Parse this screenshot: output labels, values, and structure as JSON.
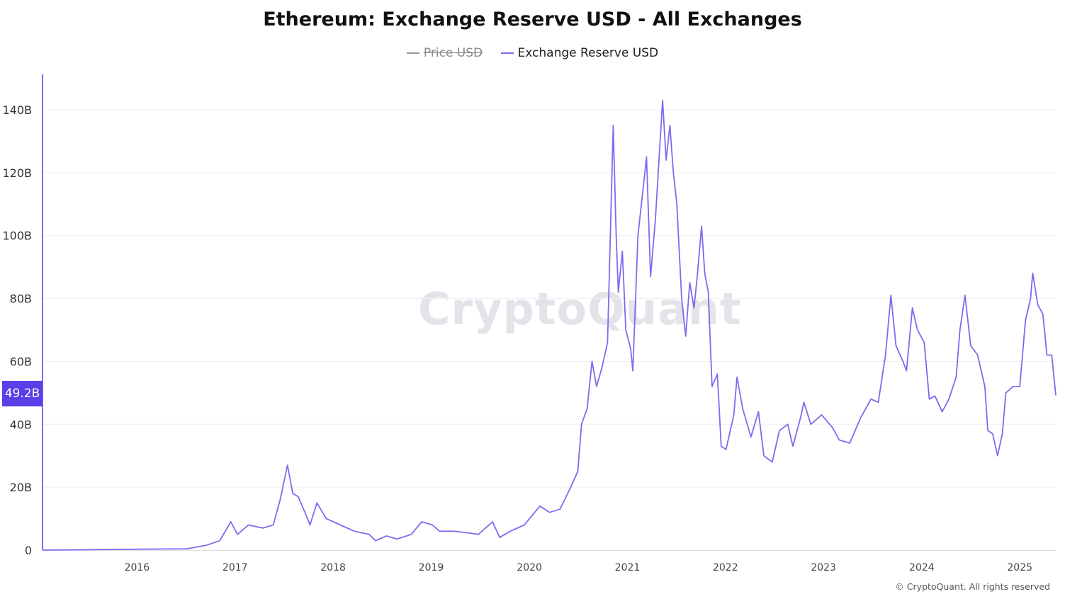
{
  "colors": {
    "series": "#7b6cf0",
    "price": "#999999",
    "badge": "#5b3ee8",
    "axis": "#7b6cf0",
    "grid": "#efefef"
  },
  "legend": [
    {
      "label": "Price USD",
      "enabled": false
    },
    {
      "label": "Exchange Reserve USD",
      "enabled": true
    }
  ],
  "watermark": "CryptoQuant",
  "footer": "© CryptoQuant. All rights reserved",
  "current_value_label": "49.2B",
  "chart_data": {
    "type": "line",
    "title": "Ethereum: Exchange Reserve USD - All Exchanges",
    "xlabel": "",
    "ylabel": "",
    "x_range": [
      "2015-07-15",
      "2025-11-12"
    ],
    "ylim": [
      0,
      151
    ],
    "y_unit": "B USD",
    "grid": true,
    "legend_position": "top-center",
    "x_ticks": [
      "2016",
      "2017",
      "2018",
      "2019",
      "2020",
      "2021",
      "2022",
      "2023",
      "2024",
      "2025"
    ],
    "y_ticks": [
      {
        "value": 0,
        "label": "0"
      },
      {
        "value": 20,
        "label": "20B"
      },
      {
        "value": 40,
        "label": "40B"
      },
      {
        "value": 60,
        "label": "60B"
      },
      {
        "value": 80,
        "label": "80B"
      },
      {
        "value": 100,
        "label": "100B"
      },
      {
        "value": 120,
        "label": "120B"
      },
      {
        "value": 140,
        "label": "140B"
      }
    ],
    "series": [
      {
        "name": "Exchange Reserve USD",
        "points": [
          [
            "2015-07-15",
            0
          ],
          [
            "2016-07-20",
            0.3
          ],
          [
            "2017-01-01",
            0.4
          ],
          [
            "2017-03-15",
            1.5
          ],
          [
            "2017-05-05",
            3
          ],
          [
            "2017-06-15",
            9
          ],
          [
            "2017-07-10",
            5
          ],
          [
            "2017-08-20",
            8
          ],
          [
            "2017-10-12",
            7
          ],
          [
            "2017-11-20",
            8
          ],
          [
            "2017-12-16",
            16
          ],
          [
            "2018-01-12",
            27
          ],
          [
            "2018-02-01",
            18
          ],
          [
            "2018-02-21",
            17
          ],
          [
            "2018-03-18",
            12
          ],
          [
            "2018-04-06",
            8
          ],
          [
            "2018-05-02",
            15
          ],
          [
            "2018-06-06",
            10
          ],
          [
            "2018-07-28",
            8
          ],
          [
            "2018-09-18",
            6
          ],
          [
            "2018-11-12",
            5
          ],
          [
            "2018-12-06",
            3
          ],
          [
            "2019-01-16",
            4.5
          ],
          [
            "2019-02-24",
            3.5
          ],
          [
            "2019-04-18",
            5
          ],
          [
            "2019-05-27",
            9
          ],
          [
            "2019-07-06",
            8
          ],
          [
            "2019-08-01",
            6
          ],
          [
            "2019-09-24",
            6
          ],
          [
            "2019-11-15",
            5.5
          ],
          [
            "2019-12-24",
            5
          ],
          [
            "2020-02-15",
            9
          ],
          [
            "2020-03-12",
            4
          ],
          [
            "2020-04-21",
            6
          ],
          [
            "2020-06-12",
            8
          ],
          [
            "2020-08-09",
            14
          ],
          [
            "2020-09-14",
            12
          ],
          [
            "2020-10-23",
            13
          ],
          [
            "2020-12-02",
            20
          ],
          [
            "2020-12-28",
            25
          ],
          [
            "2021-01-11",
            40
          ],
          [
            "2021-02-01",
            45
          ],
          [
            "2021-02-19",
            60
          ],
          [
            "2021-03-08",
            52
          ],
          [
            "2021-03-28",
            58
          ],
          [
            "2021-04-18",
            66
          ],
          [
            "2021-05-09",
            135
          ],
          [
            "2021-05-20",
            100
          ],
          [
            "2021-05-28",
            82
          ],
          [
            "2021-06-12",
            95
          ],
          [
            "2021-06-25",
            70
          ],
          [
            "2021-07-13",
            64
          ],
          [
            "2021-07-21",
            57
          ],
          [
            "2021-08-09",
            100
          ],
          [
            "2021-08-22",
            110
          ],
          [
            "2021-09-10",
            125
          ],
          [
            "2021-09-25",
            87
          ],
          [
            "2021-10-13",
            105
          ],
          [
            "2021-11-09",
            143
          ],
          [
            "2021-11-22",
            124
          ],
          [
            "2021-12-06",
            135
          ],
          [
            "2021-12-19",
            120
          ],
          [
            "2022-01-01",
            110
          ],
          [
            "2022-01-19",
            80
          ],
          [
            "2022-02-03",
            68
          ],
          [
            "2022-02-18",
            85
          ],
          [
            "2022-03-06",
            77
          ],
          [
            "2022-03-19",
            88
          ],
          [
            "2022-04-03",
            103
          ],
          [
            "2022-04-15",
            88
          ],
          [
            "2022-04-28",
            82
          ],
          [
            "2022-05-12",
            52
          ],
          [
            "2022-06-01",
            56
          ],
          [
            "2022-06-15",
            33
          ],
          [
            "2022-07-03",
            32
          ],
          [
            "2022-08-01",
            43
          ],
          [
            "2022-08-13",
            55
          ],
          [
            "2022-09-03",
            45
          ],
          [
            "2022-10-04",
            36
          ],
          [
            "2022-11-01",
            44
          ],
          [
            "2022-11-21",
            30
          ],
          [
            "2022-12-22",
            28
          ],
          [
            "2023-01-18",
            38
          ],
          [
            "2023-02-18",
            40
          ],
          [
            "2023-03-09",
            33
          ],
          [
            "2023-04-06",
            42
          ],
          [
            "2023-04-19",
            47
          ],
          [
            "2023-05-15",
            40
          ],
          [
            "2023-06-24",
            43
          ],
          [
            "2023-08-03",
            39
          ],
          [
            "2023-08-29",
            35
          ],
          [
            "2023-10-07",
            34
          ],
          [
            "2023-11-16",
            42
          ],
          [
            "2023-12-25",
            48
          ],
          [
            "2024-01-21",
            47
          ],
          [
            "2024-02-17",
            62
          ],
          [
            "2024-03-08",
            81
          ],
          [
            "2024-03-27",
            65
          ],
          [
            "2024-04-22",
            60
          ],
          [
            "2024-05-05",
            57
          ],
          [
            "2024-05-27",
            77
          ],
          [
            "2024-06-15",
            70
          ],
          [
            "2024-07-10",
            66
          ],
          [
            "2024-07-29",
            48
          ],
          [
            "2024-08-19",
            49
          ],
          [
            "2024-09-15",
            44
          ],
          [
            "2024-10-10",
            48
          ],
          [
            "2024-11-06",
            55
          ],
          [
            "2024-11-20",
            70
          ],
          [
            "2024-12-09",
            81
          ],
          [
            "2024-12-30",
            65
          ],
          [
            "2025-01-25",
            62
          ],
          [
            "2025-02-21",
            52
          ],
          [
            "2025-03-04",
            38
          ],
          [
            "2025-03-22",
            37
          ],
          [
            "2025-04-09",
            30
          ],
          [
            "2025-04-27",
            37
          ],
          [
            "2025-05-10",
            50
          ],
          [
            "2025-06-06",
            52
          ],
          [
            "2025-07-01",
            52
          ],
          [
            "2025-07-22",
            73
          ],
          [
            "2025-08-10",
            80
          ],
          [
            "2025-08-18",
            88
          ],
          [
            "2025-09-06",
            78
          ],
          [
            "2025-09-25",
            75
          ],
          [
            "2025-10-10",
            62
          ],
          [
            "2025-10-28",
            62
          ],
          [
            "2025-11-12",
            49.2
          ]
        ]
      }
    ]
  }
}
